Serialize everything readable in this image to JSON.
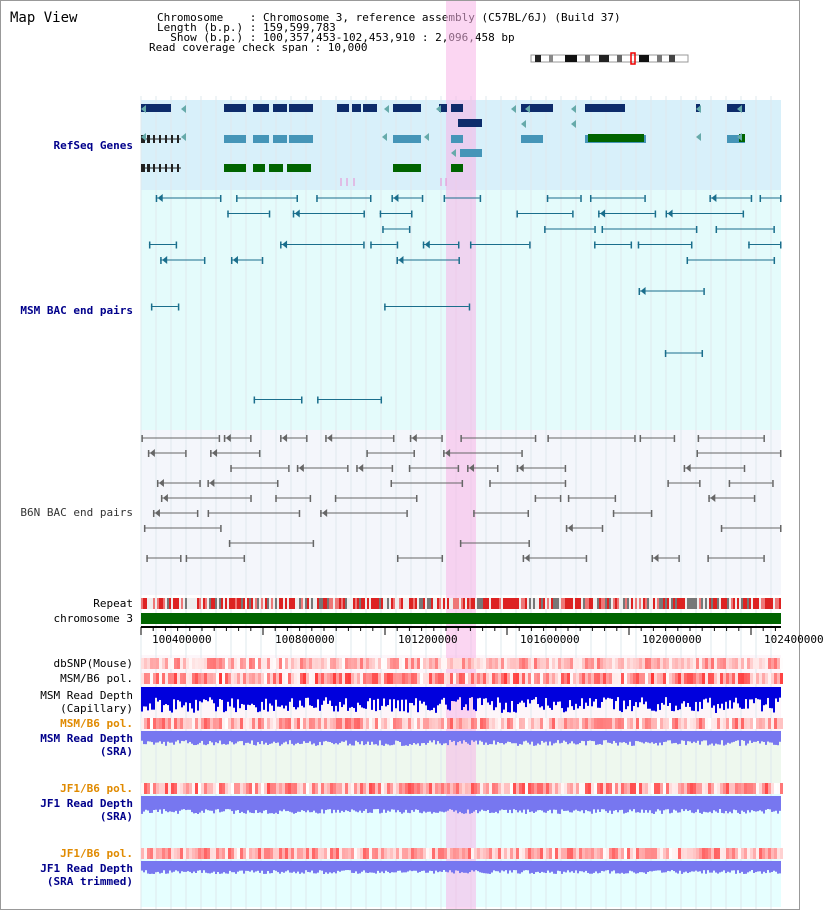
{
  "title": "Map View",
  "header": {
    "chromosome_line": "Chromosome    : Chromosome 3, reference assembly (C57BL/6J) (Build 37)",
    "length_line": "Length (b.p.) : 159,599,783",
    "show_line": "  Show (b.p.) : 100,357,453-102,453,910 : 2,096,458 bp",
    "coverage_line": "Read coverage check span : 10,000"
  },
  "tracks": {
    "refseq": "RefSeq Genes",
    "msm_bac": "MSM BAC end pairs",
    "b6n_bac": "B6N BAC end pairs",
    "repeat": "Repeat",
    "chromosome": "chromosome 3",
    "dbsnp": "dbSNP(Mouse)",
    "msm_b6_pol": "MSM/B6 pol.",
    "msm_read_depth_cap": "MSM Read Depth\n(Capillary)",
    "msm_b6_pol_2": "MSM/B6 pol.",
    "msm_read_depth_sra": "MSM Read Depth\n(SRA)",
    "jf1_b6_pol": "JF1/B6 pol.",
    "jf1_read_depth_sra": "JF1 Read Depth\n(SRA)",
    "jf1_b6_pol_2": "JF1/B6 pol.",
    "jf1_read_depth_trim": "JF1 Read Depth\n(SRA trimmed)"
  },
  "ruler": {
    "ticks": [
      "100400000",
      "100800000",
      "101200000",
      "101600000",
      "102000000",
      "102400000"
    ]
  },
  "colors": {
    "refseq_bg": "#d8f0fa",
    "msm_bg": "#e4fbfb",
    "b6n_bg": "#f4f6fb",
    "highlight": "#f8d4f0",
    "gene_navy": "#0d2c6b",
    "gene_teal": "#4595b8",
    "gene_green": "#006400",
    "msm_pair": "#1a6e8c",
    "b6n_pair": "#666666",
    "chromosome": "#006400",
    "read_depth_cap": "#0000dd",
    "read_depth_sra": "#7777f0"
  }
}
